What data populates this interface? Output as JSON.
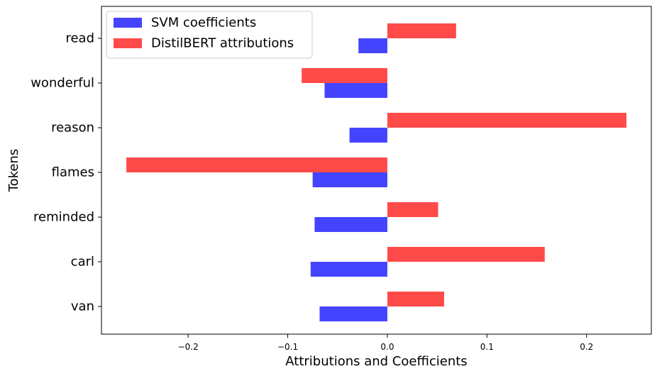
{
  "chart_data": {
    "type": "bar",
    "orientation": "horizontal",
    "categories": [
      "van",
      "carl",
      "reminded",
      "flames",
      "reason",
      "wonderful",
      "read"
    ],
    "series": [
      {
        "name": "SVM coefficients",
        "color": "#4444ff",
        "values": [
          -0.068,
          -0.077,
          -0.073,
          -0.075,
          -0.038,
          -0.063,
          -0.029
        ]
      },
      {
        "name": "DistilBERT attributions",
        "color": "#ff4a4a",
        "values": [
          0.057,
          0.158,
          0.051,
          -0.262,
          0.24,
          -0.086,
          0.069
        ]
      }
    ],
    "xticks": [
      "−0.2",
      "−0.1",
      "0.0",
      "0.1",
      "0.2"
    ],
    "xtick_values": [
      -0.2,
      -0.1,
      0.0,
      0.1,
      0.2
    ],
    "xlim": [
      -0.287,
      0.265
    ],
    "xlabel": "Attributions and Coefficients",
    "ylabel": "Tokens",
    "legend_position": "top-left",
    "grid": false
  }
}
